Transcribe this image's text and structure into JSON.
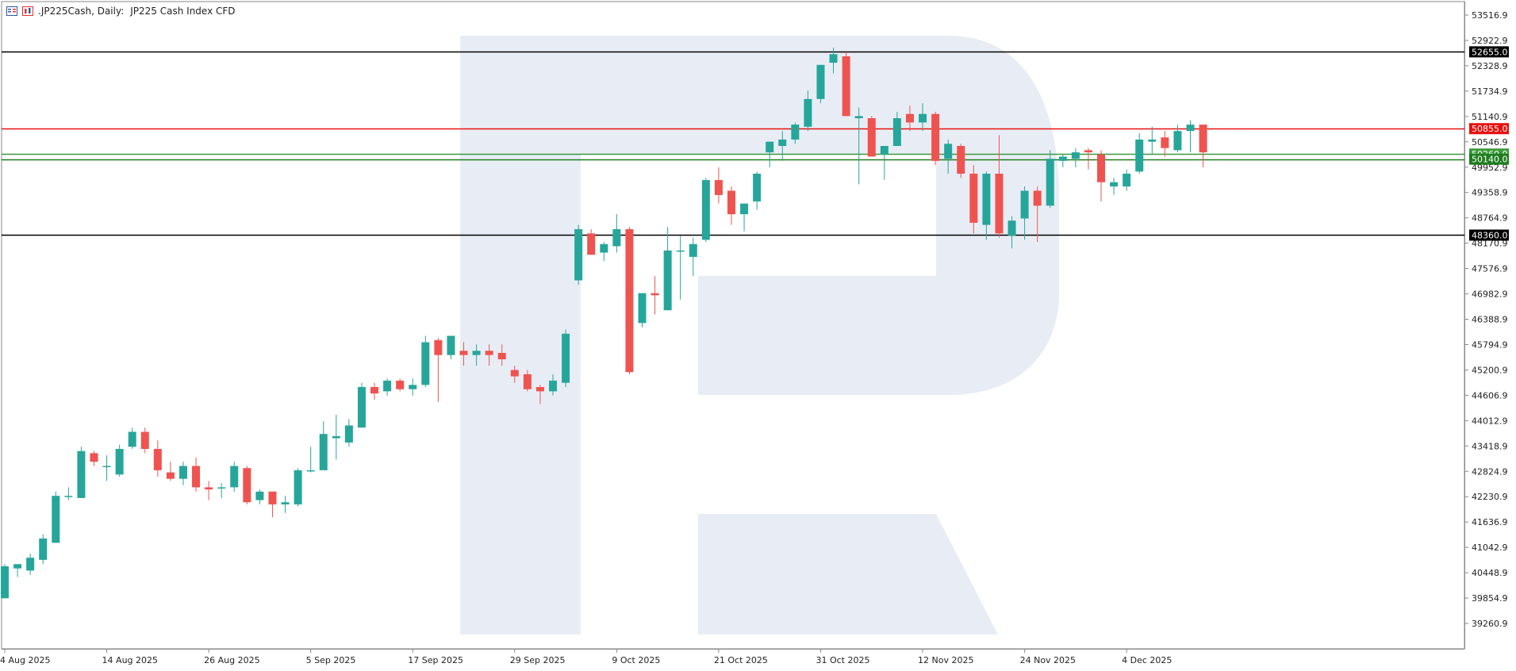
{
  "header": {
    "symbol_line": ".JP225Cash, Daily:",
    "description": "JP225 Cash Index CFD"
  },
  "chart_data": {
    "type": "candlestick",
    "symbol": ".JP225Cash",
    "timeframe": "Daily",
    "description": "JP225 Cash Index CFD",
    "grid": false,
    "ylim": [
      38960,
      53800
    ],
    "y_ticks": [
      "53516.9",
      "52922.9",
      "52328.9",
      "51734.9",
      "51140.9",
      "50546.9",
      "49952.9",
      "49358.9",
      "48764.9",
      "48170.9",
      "47576.9",
      "46982.9",
      "46388.9",
      "45794.9",
      "45200.9",
      "44606.9",
      "44012.9",
      "43418.9",
      "42824.9",
      "42230.9",
      "41636.9",
      "41042.9",
      "40448.9",
      "39854.9",
      "39260.9"
    ],
    "x_labels": [
      "4 Aug 2025",
      "14 Aug 2025",
      "26 Aug 2025",
      "5 Sep 2025",
      "17 Sep 2025",
      "29 Sep 2025",
      "9 Oct 2025",
      "21 Oct 2025",
      "31 Oct 2025",
      "12 Nov 2025",
      "24 Nov 2025",
      "4 Dec 2025"
    ],
    "x_label_index": [
      0,
      8,
      16,
      24,
      32,
      40,
      48,
      56,
      64,
      72,
      80,
      88
    ],
    "levels": [
      {
        "value": 52655.0,
        "label": "52655.0",
        "color": "#000000",
        "label_bg": "#000000"
      },
      {
        "value": 50855.0,
        "label": "50855.0",
        "color": "#e8110f",
        "label_bg": "#e8110f"
      },
      {
        "value": 50260.0,
        "label": "50260.0",
        "color": "#3a9a3a",
        "label_bg": "#3a9a3a"
      },
      {
        "value": 50140.0,
        "label": "50140.0",
        "color": "#1f7d1f",
        "label_bg": "#1f7d1f"
      },
      {
        "value": 48360.0,
        "label": "48360.0",
        "color": "#000000",
        "label_bg": "#000000"
      }
    ],
    "colors": {
      "up": "#26a69a",
      "down": "#ef5350",
      "wick_up": "#26a69a",
      "wick_down": "#ef5350"
    },
    "candles": [
      [
        39850,
        40650,
        39850,
        40600
      ],
      [
        40550,
        40650,
        40350,
        40650
      ],
      [
        40500,
        40900,
        40400,
        40800
      ],
      [
        40750,
        41350,
        40650,
        41250
      ],
      [
        41150,
        42350,
        41150,
        42250
      ],
      [
        42250,
        42450,
        42150,
        42250
      ],
      [
        42200,
        43400,
        42200,
        43300
      ],
      [
        43250,
        43300,
        42950,
        43050
      ],
      [
        42950,
        43200,
        42600,
        42950
      ],
      [
        42750,
        43450,
        42700,
        43350
      ],
      [
        43400,
        43850,
        43350,
        43750
      ],
      [
        43750,
        43850,
        43250,
        43350
      ],
      [
        43350,
        43550,
        42700,
        42850
      ],
      [
        42800,
        43050,
        42600,
        42650
      ],
      [
        42650,
        43050,
        42500,
        42950
      ],
      [
        42950,
        43150,
        42350,
        42450
      ],
      [
        42450,
        42600,
        42150,
        42400
      ],
      [
        42450,
        42550,
        42200,
        42450
      ],
      [
        42450,
        43050,
        42350,
        42950
      ],
      [
        42900,
        42950,
        42050,
        42100
      ],
      [
        42150,
        42400,
        42050,
        42350
      ],
      [
        42350,
        42350,
        41750,
        42050
      ],
      [
        42050,
        42250,
        41850,
        42100
      ],
      [
        42050,
        42900,
        42000,
        42850
      ],
      [
        42850,
        43400,
        42800,
        42850
      ],
      [
        42850,
        44000,
        42850,
        43700
      ],
      [
        43600,
        44150,
        43100,
        43650
      ],
      [
        43500,
        44050,
        43400,
        43900
      ],
      [
        43850,
        44900,
        43850,
        44800
      ],
      [
        44800,
        44900,
        44500,
        44650
      ],
      [
        44700,
        45000,
        44600,
        44950
      ],
      [
        44950,
        45000,
        44700,
        44750
      ],
      [
        44750,
        45000,
        44600,
        44850
      ],
      [
        44850,
        46000,
        44800,
        45850
      ],
      [
        45900,
        45950,
        44450,
        45550
      ],
      [
        45550,
        46000,
        45450,
        46000
      ],
      [
        45650,
        45850,
        45300,
        45550
      ],
      [
        45550,
        45800,
        45300,
        45650
      ],
      [
        45650,
        45800,
        45300,
        45550
      ],
      [
        45600,
        45800,
        45300,
        45450
      ],
      [
        45200,
        45300,
        44900,
        45050
      ],
      [
        45100,
        45200,
        44700,
        44750
      ],
      [
        44800,
        44850,
        44400,
        44700
      ],
      [
        44700,
        45100,
        44600,
        44950
      ],
      [
        44900,
        46150,
        44800,
        46050
      ],
      [
        47300,
        48600,
        47200,
        48500
      ],
      [
        48400,
        48500,
        47900,
        47900
      ],
      [
        47950,
        48200,
        47750,
        48150
      ],
      [
        48100,
        48850,
        47950,
        48500
      ],
      [
        48500,
        48550,
        45100,
        45150
      ],
      [
        46300,
        47000,
        46200,
        47000
      ],
      [
        47000,
        47400,
        46500,
        46950
      ],
      [
        46600,
        48550,
        46600,
        48000
      ],
      [
        48000,
        48350,
        46850,
        48000
      ],
      [
        47850,
        48300,
        47400,
        48150
      ],
      [
        48250,
        49700,
        48200,
        49650
      ],
      [
        49650,
        49950,
        49100,
        49300
      ],
      [
        49400,
        49500,
        48600,
        48850
      ],
      [
        48850,
        49100,
        48450,
        49100
      ],
      [
        49150,
        49850,
        48950,
        49800
      ],
      [
        50300,
        50550,
        49950,
        50550
      ],
      [
        50450,
        50800,
        50100,
        50600
      ],
      [
        50600,
        51000,
        50500,
        50950
      ],
      [
        50900,
        51750,
        50800,
        51550
      ],
      [
        51550,
        52350,
        51450,
        52350
      ],
      [
        52400,
        52750,
        52150,
        52600
      ],
      [
        52550,
        52650,
        51150,
        51150
      ],
      [
        51100,
        51350,
        49550,
        51150
      ],
      [
        51100,
        51150,
        50200,
        50200
      ],
      [
        50250,
        50450,
        49650,
        50450
      ],
      [
        50450,
        51250,
        50500,
        51100
      ],
      [
        51200,
        51400,
        50800,
        51000
      ],
      [
        51000,
        51450,
        50800,
        51200
      ],
      [
        51200,
        51250,
        50000,
        50100
      ],
      [
        50150,
        50600,
        49800,
        50500
      ],
      [
        50450,
        50500,
        49700,
        49800
      ],
      [
        49800,
        50000,
        48400,
        48650
      ],
      [
        48600,
        49850,
        48250,
        49800
      ],
      [
        49800,
        50700,
        48300,
        48400
      ],
      [
        48350,
        48800,
        48050,
        48700
      ],
      [
        48750,
        49500,
        48250,
        49400
      ],
      [
        49400,
        49500,
        48200,
        49050
      ],
      [
        49050,
        50350,
        49000,
        50150
      ],
      [
        50100,
        50250,
        49950,
        50200
      ],
      [
        50150,
        50400,
        49950,
        50300
      ],
      [
        50350,
        50400,
        49900,
        50300
      ],
      [
        50250,
        50350,
        49150,
        49600
      ],
      [
        49500,
        49700,
        49300,
        49600
      ],
      [
        49500,
        49900,
        49400,
        49800
      ],
      [
        49850,
        50750,
        49800,
        50600
      ],
      [
        50550,
        50900,
        50250,
        50600
      ],
      [
        50650,
        50800,
        50200,
        50400
      ],
      [
        50350,
        50950,
        50300,
        50800
      ],
      [
        50800,
        51050,
        50300,
        50950
      ],
      [
        50950,
        50950,
        49950,
        50300
      ]
    ]
  }
}
